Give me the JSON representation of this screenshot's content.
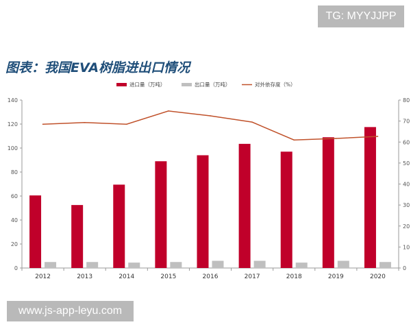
{
  "watermarks": {
    "top": "TG: MYYJJPP",
    "bottom": "www.js-app-leyu.com"
  },
  "figure_title": "图表：我国EVA树脂进出口情况",
  "colors": {
    "import": "#c0002a",
    "export": "#bfbfbf",
    "dependency": "#c0512a",
    "title": "#1f4e79"
  },
  "chart_data": {
    "type": "bar",
    "categories": [
      "2012",
      "2013",
      "2014",
      "2015",
      "2016",
      "2017",
      "2018",
      "2019",
      "2020"
    ],
    "series": [
      {
        "name": "进口量（万吨）",
        "type": "bar",
        "axis": "left",
        "values": [
          60.5,
          52.5,
          69.5,
          89,
          94,
          103.5,
          97,
          109,
          117.5
        ]
      },
      {
        "name": "出口量（万吨）",
        "type": "bar",
        "axis": "left",
        "values": [
          5,
          5,
          4.5,
          5,
          6,
          6,
          4.5,
          6,
          5
        ]
      },
      {
        "name": "对外依存度（%）",
        "type": "line",
        "axis": "right",
        "values": [
          68.5,
          69.3,
          68.5,
          74.8,
          72.5,
          69.5,
          61,
          61.7,
          62.7
        ]
      }
    ],
    "y_left": {
      "min": 0,
      "max": 140,
      "ticks": [
        "0",
        "20",
        "40",
        "60",
        "80",
        "100",
        "120",
        "140"
      ]
    },
    "y_right": {
      "min": 0,
      "max": 80,
      "ticks": [
        "0",
        "10",
        "20",
        "30",
        "40",
        "50",
        "60",
        "70",
        "80"
      ]
    },
    "grid": false,
    "legend_position": "top"
  }
}
